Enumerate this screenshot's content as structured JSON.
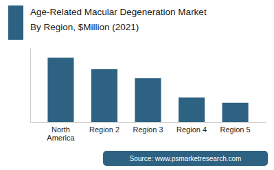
{
  "chart_data": {
    "type": "bar",
    "title": "Age-Related Macular Degeneration Market",
    "subtitle": "By Region, $Million (2021)",
    "categories": [
      "North\nAmerica",
      "Region 2",
      "Region 3",
      "Region 4",
      "Region 5"
    ],
    "values": [
      100,
      82,
      68,
      38,
      30
    ],
    "color": "#2e6282",
    "ylim": [
      0,
      115
    ],
    "grid": false,
    "tick_labels": "x",
    "annotations": [
      "Source: www.psmarketresearch.com"
    ]
  }
}
